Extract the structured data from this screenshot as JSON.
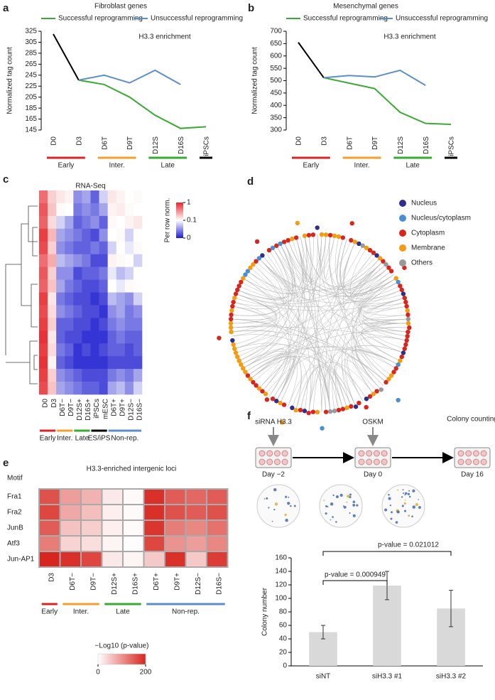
{
  "chart_data": [
    {
      "type": "line",
      "panel": "a",
      "title": "Fibroblast genes",
      "annotation": "H3.3 enrichment",
      "ylabel": "Normalized tag count",
      "categories": [
        "D0",
        "D3",
        "D6T",
        "D9T",
        "D12S",
        "D16S",
        "iPSCs"
      ],
      "category_colors": [
        "#d62728",
        "#d62728",
        "#f0a030",
        "#f0a030",
        "#3aaa35",
        "#3aaa35",
        "#000000"
      ],
      "groups": [
        {
          "label": "Early",
          "color": "#d62728",
          "members": [
            "D0",
            "D3"
          ]
        },
        {
          "label": "Inter.",
          "color": "#f0a030",
          "members": [
            "D6T",
            "D9T"
          ]
        },
        {
          "label": "Late",
          "color": "#3aaa35",
          "members": [
            "D12S",
            "D16S"
          ]
        },
        {
          "color": "#000000",
          "members": [
            "iPSCs"
          ]
        }
      ],
      "series": [
        {
          "color": "#000000",
          "values": [
            320,
            236,
            null,
            null,
            null,
            null,
            null
          ]
        },
        {
          "name": "Successful reprogramming",
          "color": "#3aaa35",
          "values": [
            null,
            236,
            228,
            205,
            172,
            148,
            151
          ]
        },
        {
          "name": "Unsuccessful reprogramming",
          "color": "#5b8fc9",
          "values": [
            null,
            236,
            245,
            231,
            254,
            228,
            null
          ]
        }
      ],
      "ylim": [
        145,
        325
      ],
      "yticks": [
        145,
        165,
        185,
        205,
        225,
        245,
        265,
        285,
        305,
        325
      ]
    },
    {
      "type": "line",
      "panel": "b",
      "title": "Mesenchymal genes",
      "annotation": "H3.3 enrichment",
      "ylabel": "Normalized tag count",
      "categories": [
        "D0",
        "D3",
        "D6T",
        "D9T",
        "D12S",
        "D16S",
        "iPSCs"
      ],
      "category_colors": [
        "#d62728",
        "#d62728",
        "#f0a030",
        "#f0a030",
        "#3aaa35",
        "#3aaa35",
        "#000000"
      ],
      "groups": [
        {
          "label": "Early",
          "color": "#d62728",
          "members": [
            "D0",
            "D3"
          ]
        },
        {
          "label": "Inter.",
          "color": "#f0a030",
          "members": [
            "D6T",
            "D9T"
          ]
        },
        {
          "label": "Late",
          "color": "#3aaa35",
          "members": [
            "D12S",
            "D16S"
          ]
        },
        {
          "color": "#000000",
          "members": [
            "iPSCs"
          ]
        }
      ],
      "series": [
        {
          "color": "#000000",
          "values": [
            655,
            512,
            null,
            null,
            null,
            null,
            null
          ]
        },
        {
          "name": "Successful reprogramming",
          "color": "#3aaa35",
          "values": [
            null,
            512,
            490,
            468,
            372,
            327,
            323
          ]
        },
        {
          "name": "Unsuccessful reprogramming",
          "color": "#5b8fc9",
          "values": [
            null,
            512,
            521,
            515,
            542,
            481,
            null
          ]
        }
      ],
      "ylim": [
        300,
        700
      ],
      "yticks": [
        300,
        350,
        400,
        450,
        500,
        550,
        600,
        650,
        700
      ]
    },
    {
      "type": "heatmap",
      "panel": "c",
      "title": "RNA-Seq",
      "columns": [
        "D0",
        "D3",
        "D6T−",
        "D9T−",
        "D12S+",
        "D16S+",
        "iPSCs",
        "mESC",
        "D6T+",
        "D9T+",
        "D12S−",
        "D16S−"
      ],
      "column_colors": [
        "#d62728",
        "#d62728",
        "#f0a030",
        "#f0a030",
        "#3aaa35",
        "#3aaa35",
        "#000000",
        "#000000",
        "#5b8fc9",
        "#5b8fc9",
        "#5b8fc9",
        "#5b8fc9"
      ],
      "groups": [
        {
          "label": "Early",
          "color": "#d62728",
          "members": [
            "D0",
            "D3"
          ]
        },
        {
          "label": "Inter.",
          "color": "#f0a030",
          "members": [
            "D6T−",
            "D9T−"
          ]
        },
        {
          "label": "Late",
          "color": "#3aaa35",
          "members": [
            "D12S+",
            "D16S+"
          ]
        },
        {
          "label": "ES/iPS",
          "color": "#000000",
          "members": [
            "iPSCs",
            "mESC"
          ]
        },
        {
          "label": "Non-rep.",
          "color": "#5b8fc9",
          "members": [
            "D6T+",
            "D9T+",
            "D12S−",
            "D16S−"
          ]
        }
      ],
      "values": [
        [
          0.7,
          0.3,
          0.2,
          0.15,
          0.05,
          0.06,
          0.03,
          0.08,
          0.2,
          0.15,
          0.1,
          0.12
        ],
        [
          0.8,
          0.35,
          0.12,
          0.1,
          0.04,
          0.05,
          0.04,
          0.06,
          0.15,
          0.18,
          0.12,
          0.1
        ],
        [
          0.75,
          0.25,
          0.08,
          0.06,
          0.03,
          0.04,
          0.05,
          0.03,
          0.12,
          0.1,
          0.15,
          0.2
        ],
        [
          0.9,
          0.4,
          0.06,
          0.05,
          0.04,
          0.03,
          0.02,
          0.05,
          0.1,
          0.12,
          0.08,
          0.1
        ],
        [
          0.85,
          0.3,
          0.05,
          0.04,
          0.03,
          0.03,
          0.04,
          0.03,
          0.08,
          0.1,
          0.09,
          0.12
        ],
        [
          0.7,
          0.45,
          0.07,
          0.06,
          0.05,
          0.04,
          0.02,
          0.02,
          0.15,
          0.12,
          0.1,
          0.08
        ],
        [
          0.8,
          0.3,
          0.05,
          0.05,
          0.02,
          0.03,
          0.03,
          0.04,
          0.09,
          0.07,
          0.08,
          0.1
        ],
        [
          0.75,
          0.35,
          0.06,
          0.04,
          0.03,
          0.02,
          0.02,
          0.03,
          0.1,
          0.09,
          0.12,
          0.11
        ],
        [
          0.9,
          0.2,
          0.04,
          0.03,
          0.02,
          0.02,
          0.01,
          0.02,
          0.07,
          0.06,
          0.05,
          0.08
        ],
        [
          0.85,
          0.25,
          0.05,
          0.04,
          0.03,
          0.02,
          0.02,
          0.01,
          0.05,
          0.06,
          0.04,
          0.05
        ],
        [
          0.9,
          0.3,
          0.03,
          0.03,
          0.02,
          0.02,
          0.01,
          0.02,
          0.04,
          0.05,
          0.04,
          0.04
        ],
        [
          0.95,
          0.2,
          0.03,
          0.02,
          0.02,
          0.01,
          0.01,
          0.01,
          0.03,
          0.04,
          0.03,
          0.03
        ],
        [
          0.9,
          0.25,
          0.04,
          0.03,
          0.01,
          0.02,
          0.01,
          0.02,
          0.03,
          0.03,
          0.02,
          0.03
        ],
        [
          0.95,
          0.15,
          0.03,
          0.02,
          0.01,
          0.01,
          0.01,
          0.01,
          0.02,
          0.02,
          0.02,
          0.02
        ],
        [
          0.9,
          0.3,
          0.05,
          0.04,
          0.03,
          0.02,
          0.02,
          0.02,
          0.04,
          0.05,
          0.04,
          0.06
        ],
        [
          0.85,
          0.35,
          0.06,
          0.05,
          0.04,
          0.03,
          0.03,
          0.02,
          0.06,
          0.07,
          0.05,
          0.08
        ]
      ],
      "colorbar": {
        "title": "Per row norm.",
        "ticks": [
          0,
          0.1,
          1
        ],
        "colors": [
          "#1f1fd0",
          "#ffffff",
          "#e8262b"
        ]
      }
    },
    {
      "type": "network",
      "panel": "d",
      "legend": [
        {
          "name": "Nucleus",
          "color": "#2e2e8f"
        },
        {
          "name": "Nucleus/cytoplasm",
          "color": "#4a90d0"
        },
        {
          "name": "Cytoplasm",
          "color": "#d7261e"
        },
        {
          "name": "Membrane",
          "color": "#f39c12"
        },
        {
          "name": "Others",
          "color": "#999999"
        }
      ]
    },
    {
      "type": "heatmap",
      "panel": "e",
      "title": "H3.3-enriched intergenic loci",
      "row_header": "Motif",
      "rows": [
        "Fra1",
        "Fra2",
        "JunB",
        "Atf3",
        "Jun-AP1"
      ],
      "columns": [
        "D3",
        "D6T−",
        "D9T−",
        "D12S+",
        "D16S+",
        "D6T+",
        "D9T+",
        "D12S−",
        "D16S−"
      ],
      "column_colors": [
        "#d62728",
        "#f0a030",
        "#f0a030",
        "#3aaa35",
        "#3aaa35",
        "#5b8fc9",
        "#5b8fc9",
        "#5b8fc9",
        "#5b8fc9"
      ],
      "groups": [
        {
          "label": "Early",
          "color": "#d62728",
          "members": [
            "D3"
          ]
        },
        {
          "label": "Inter.",
          "color": "#f0a030",
          "members": [
            "D6T−",
            "D9T−"
          ]
        },
        {
          "label": "Late",
          "color": "#3aaa35",
          "members": [
            "D12S+",
            "D16S+"
          ]
        },
        {
          "label": "Non-rep.",
          "color": "#5b8fc9",
          "members": [
            "D6T+",
            "D9T+",
            "D12S−",
            "D16S−"
          ]
        }
      ],
      "values": [
        [
          160,
          90,
          70,
          20,
          5,
          190,
          150,
          140,
          150
        ],
        [
          170,
          80,
          60,
          15,
          5,
          190,
          160,
          150,
          160
        ],
        [
          150,
          55,
          45,
          15,
          5,
          185,
          120,
          110,
          130
        ],
        [
          120,
          40,
          30,
          10,
          3,
          170,
          100,
          90,
          110
        ],
        [
          200,
          190,
          170,
          20,
          10,
          50,
          190,
          50,
          180
        ]
      ],
      "colorbar": {
        "title": "−Log10 (p-value)",
        "ticks": [
          0,
          200
        ],
        "colors": [
          "#ffffff",
          "#d7261e"
        ]
      }
    },
    {
      "type": "bar",
      "panel": "f",
      "protocol": [
        {
          "label": "siRNA H3.3",
          "day": "Day −2",
          "color": "#d62728"
        },
        {
          "label": "OSKM",
          "day": "Day 0",
          "color": "#d62728"
        },
        {
          "label": "Colony counting",
          "day": "Day 16",
          "color": "#3aaa35"
        }
      ],
      "categories": [
        "siNT",
        "siH3.3 #1",
        "siH3.3 #2"
      ],
      "values": [
        50,
        119,
        85
      ],
      "errors": [
        10,
        21,
        27
      ],
      "color": "#d9d9d9",
      "ylabel": "Colony number",
      "ylim": [
        0,
        160
      ],
      "yticks": [
        0,
        20,
        40,
        60,
        80,
        100,
        120,
        140,
        160
      ],
      "annotations": [
        "p-value = 0.000949",
        "p-value = 0.021012"
      ]
    }
  ]
}
